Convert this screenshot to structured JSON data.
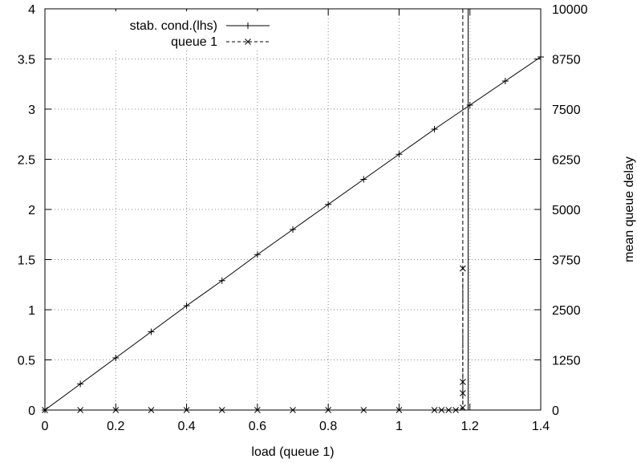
{
  "chart_data": {
    "type": "line",
    "xlabel": "load (queue 1)",
    "ylabel_left": "",
    "ylabel_right": "mean queue delay",
    "xlim": [
      0,
      1.4
    ],
    "ylim_left": [
      0,
      4
    ],
    "ylim_right": [
      0,
      10000
    ],
    "x_ticks": [
      "0",
      "0.2",
      "0.4",
      "0.6",
      "0.8",
      "1",
      "1.2",
      "1.4"
    ],
    "y_left_ticks": [
      "0",
      "0.5",
      "1",
      "1.5",
      "2",
      "2.5",
      "3",
      "3.5",
      "4"
    ],
    "y_right_ticks": [
      "0",
      "1250",
      "2500",
      "3750",
      "5000",
      "6250",
      "7500",
      "8750",
      "10000"
    ],
    "grid": true,
    "legend_position": "top-left",
    "series": [
      {
        "name": "stab. cond.(lhs)",
        "axis": "left",
        "line_style": "solid",
        "marker": "+",
        "x": [
          0,
          0.1,
          0.2,
          0.3,
          0.4,
          0.5,
          0.6,
          0.7,
          0.8,
          0.9,
          1.0,
          1.1,
          1.2,
          1.3,
          1.4
        ],
        "values": [
          0,
          0.26,
          0.52,
          0.78,
          1.04,
          1.29,
          1.55,
          1.8,
          2.05,
          2.3,
          2.55,
          2.8,
          3.04,
          3.28,
          3.52
        ]
      },
      {
        "name": "queue 1",
        "axis": "right",
        "line_style": "dashed",
        "marker": "x",
        "x": [
          0,
          0.1,
          0.2,
          0.3,
          0.4,
          0.5,
          0.6,
          0.7,
          0.8,
          0.9,
          1.0,
          1.1,
          1.12,
          1.14,
          1.16,
          1.18,
          1.18,
          1.18,
          1.18
        ],
        "values": [
          0,
          0,
          0,
          0,
          0,
          0,
          0,
          0,
          0,
          0,
          0,
          0,
          0,
          0,
          0,
          60,
          420,
          700,
          3530
        ]
      }
    ],
    "vertical_lines": [
      {
        "x": 1.18,
        "style": "dashed"
      },
      {
        "x": 1.195,
        "style": "solid"
      }
    ]
  }
}
